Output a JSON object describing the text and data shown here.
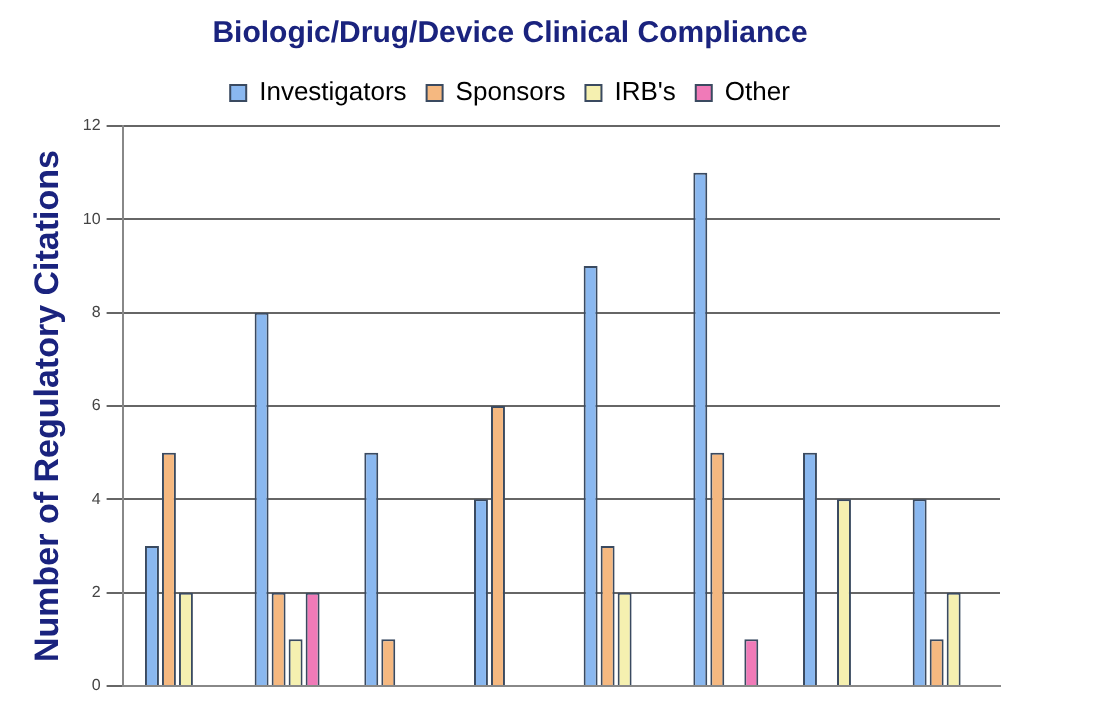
{
  "chart_data": {
    "type": "bar",
    "title": "Biologic/Drug/Device Clinical Compliance",
    "ylabel": "Number of Regulatory Citations",
    "categories": [
      null,
      null,
      null,
      null,
      null,
      null,
      null,
      null
    ],
    "series": [
      {
        "name": "Investigators",
        "color": "#8ab8f0",
        "values": [
          3,
          8,
          5,
          4,
          9,
          11,
          5,
          4
        ]
      },
      {
        "name": "Sponsors",
        "color": "#f5b880",
        "values": [
          5,
          2,
          1,
          6,
          3,
          5,
          null,
          1
        ]
      },
      {
        "name": "IRB's",
        "color": "#f5f0b0",
        "values": [
          2,
          1,
          null,
          null,
          2,
          null,
          4,
          2
        ]
      },
      {
        "name": "Other",
        "color": "#f07ab8",
        "values": [
          null,
          2,
          null,
          null,
          null,
          1,
          null,
          null
        ]
      }
    ],
    "ylim": [
      0,
      12
    ],
    "yticks": [
      0,
      2,
      4,
      6,
      8,
      10,
      12
    ],
    "grid": "y",
    "legend": "top",
    "tick_labels": "y"
  }
}
